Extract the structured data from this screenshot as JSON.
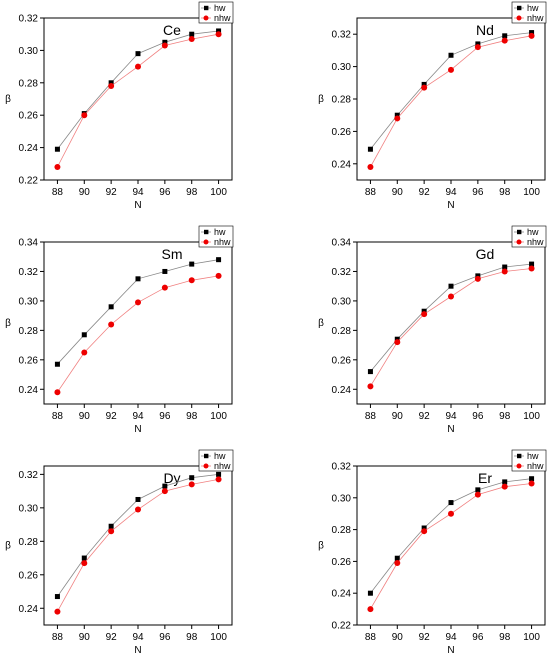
{
  "chart_data": [
    {
      "type": "scatter",
      "title": "Ce",
      "xlabel": "N",
      "ylabel": "β",
      "x": [
        88,
        90,
        92,
        94,
        96,
        98,
        100
      ],
      "xlim": [
        87,
        101
      ],
      "ylim": [
        0.22,
        0.32
      ],
      "yticks": [
        "0.22",
        "0.24",
        "0.26",
        "0.28",
        "0.30",
        "0.32"
      ],
      "xticks": [
        "88",
        "90",
        "92",
        "94",
        "96",
        "98",
        "100"
      ],
      "legend_position": "top-right",
      "series": [
        {
          "name": "hw",
          "color": "#000000",
          "marker": "square",
          "values": [
            0.239,
            0.261,
            0.28,
            0.298,
            0.305,
            0.31,
            0.312
          ]
        },
        {
          "name": "nhw",
          "color": "#ee0000",
          "marker": "circle",
          "values": [
            0.228,
            0.26,
            0.278,
            0.29,
            0.303,
            0.307,
            0.31
          ]
        }
      ]
    },
    {
      "type": "scatter",
      "title": "Nd",
      "xlabel": "N",
      "ylabel": "β",
      "x": [
        88,
        90,
        92,
        94,
        96,
        98,
        100
      ],
      "xlim": [
        87,
        101
      ],
      "ylim": [
        0.23,
        0.33
      ],
      "yticks": [
        "0.24",
        "0.26",
        "0.28",
        "0.30",
        "0.32"
      ],
      "xticks": [
        "88",
        "90",
        "92",
        "94",
        "96",
        "98",
        "100"
      ],
      "legend_position": "top-right",
      "series": [
        {
          "name": "hw",
          "color": "#000000",
          "marker": "square",
          "values": [
            0.249,
            0.27,
            0.289,
            0.307,
            0.314,
            0.319,
            0.321
          ]
        },
        {
          "name": "nhw",
          "color": "#ee0000",
          "marker": "circle",
          "values": [
            0.238,
            0.268,
            0.287,
            0.298,
            0.312,
            0.316,
            0.319
          ]
        }
      ]
    },
    {
      "type": "scatter",
      "title": "Sm",
      "xlabel": "N",
      "ylabel": "β",
      "x": [
        88,
        90,
        92,
        94,
        96,
        98,
        100
      ],
      "xlim": [
        87,
        101
      ],
      "ylim": [
        0.23,
        0.34
      ],
      "yticks": [
        "0.24",
        "0.26",
        "0.28",
        "0.30",
        "0.32",
        "0.34"
      ],
      "xticks": [
        "88",
        "90",
        "92",
        "94",
        "96",
        "98",
        "100"
      ],
      "legend_position": "top-right",
      "series": [
        {
          "name": "hw",
          "color": "#000000",
          "marker": "square",
          "values": [
            0.257,
            0.277,
            0.296,
            0.315,
            0.32,
            0.325,
            0.328
          ]
        },
        {
          "name": "nhw",
          "color": "#ee0000",
          "marker": "circle",
          "values": [
            0.238,
            0.265,
            0.284,
            0.299,
            0.309,
            0.314,
            0.317
          ]
        }
      ]
    },
    {
      "type": "scatter",
      "title": "Gd",
      "xlabel": "N",
      "ylabel": "β",
      "x": [
        88,
        90,
        92,
        94,
        96,
        98,
        100
      ],
      "xlim": [
        87,
        101
      ],
      "ylim": [
        0.23,
        0.34
      ],
      "yticks": [
        "0.24",
        "0.26",
        "0.28",
        "0.30",
        "0.32",
        "0.34"
      ],
      "xticks": [
        "88",
        "90",
        "92",
        "94",
        "96",
        "98",
        "100"
      ],
      "legend_position": "top-right",
      "series": [
        {
          "name": "hw",
          "color": "#000000",
          "marker": "square",
          "values": [
            0.252,
            0.274,
            0.293,
            0.31,
            0.317,
            0.323,
            0.325
          ]
        },
        {
          "name": "nhw",
          "color": "#ee0000",
          "marker": "circle",
          "values": [
            0.242,
            0.272,
            0.291,
            0.303,
            0.315,
            0.32,
            0.322
          ]
        }
      ]
    },
    {
      "type": "scatter",
      "title": "Dy",
      "xlabel": "N",
      "ylabel": "β",
      "x": [
        88,
        90,
        92,
        94,
        96,
        98,
        100
      ],
      "xlim": [
        87,
        101
      ],
      "ylim": [
        0.23,
        0.325
      ],
      "yticks": [
        "0.24",
        "0.26",
        "0.28",
        "0.30",
        "0.32"
      ],
      "xticks": [
        "88",
        "90",
        "92",
        "94",
        "96",
        "98",
        "100"
      ],
      "legend_position": "top-right",
      "series": [
        {
          "name": "hw",
          "color": "#000000",
          "marker": "square",
          "values": [
            0.247,
            0.27,
            0.289,
            0.305,
            0.313,
            0.318,
            0.32
          ]
        },
        {
          "name": "nhw",
          "color": "#ee0000",
          "marker": "circle",
          "values": [
            0.238,
            0.267,
            0.286,
            0.299,
            0.31,
            0.314,
            0.317
          ]
        }
      ]
    },
    {
      "type": "scatter",
      "title": "Er",
      "xlabel": "N",
      "ylabel": "β",
      "x": [
        88,
        90,
        92,
        94,
        96,
        98,
        100
      ],
      "xlim": [
        87,
        101
      ],
      "ylim": [
        0.22,
        0.32
      ],
      "yticks": [
        "0.22",
        "0.24",
        "0.26",
        "0.28",
        "0.30",
        "0.32"
      ],
      "xticks": [
        "88",
        "90",
        "92",
        "94",
        "96",
        "98",
        "100"
      ],
      "legend_position": "top-right",
      "series": [
        {
          "name": "hw",
          "color": "#000000",
          "marker": "square",
          "values": [
            0.24,
            0.262,
            0.281,
            0.297,
            0.305,
            0.31,
            0.312
          ]
        },
        {
          "name": "nhw",
          "color": "#ee0000",
          "marker": "circle",
          "values": [
            0.23,
            0.259,
            0.279,
            0.29,
            0.302,
            0.307,
            0.309
          ]
        }
      ]
    }
  ]
}
